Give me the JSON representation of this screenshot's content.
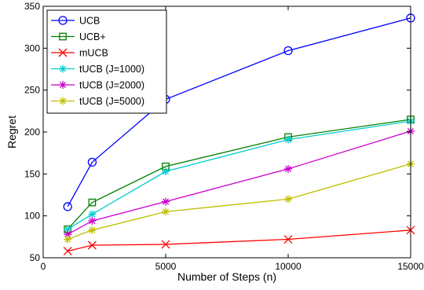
{
  "chart_data": {
    "type": "line",
    "title": "",
    "xlabel": "Number of Steps (n)",
    "ylabel": "Regret",
    "xlim": [
      0,
      15000
    ],
    "ylim": [
      50,
      350
    ],
    "xticks": [
      0,
      5000,
      10000,
      15000
    ],
    "yticks": [
      50,
      100,
      150,
      200,
      250,
      300,
      350
    ],
    "grid": false,
    "legend_position": "top-left",
    "x": [
      1000,
      2000,
      5000,
      10000,
      15000
    ],
    "series": [
      {
        "name": "UCB",
        "values": [
          111,
          164,
          239,
          297,
          336
        ],
        "color": "#0000ff",
        "marker": "circle"
      },
      {
        "name": "UCB+",
        "values": [
          84,
          116,
          159,
          194,
          215
        ],
        "color": "#008000",
        "marker": "square"
      },
      {
        "name": "mUCB",
        "values": [
          58,
          65,
          66,
          72,
          83
        ],
        "color": "#ff0000",
        "marker": "x"
      },
      {
        "name": "tUCB (J=1000)",
        "values": [
          84,
          102,
          153,
          191,
          213
        ],
        "color": "#00cccc",
        "marker": "asterisk"
      },
      {
        "name": "tUCB (J=2000)",
        "values": [
          78,
          94,
          117,
          156,
          201
        ],
        "color": "#cc00cc",
        "marker": "asterisk"
      },
      {
        "name": "tUCB (J=5000)",
        "values": [
          72,
          83,
          105,
          120,
          162
        ],
        "color": "#bfbf00",
        "marker": "asterisk"
      }
    ]
  }
}
